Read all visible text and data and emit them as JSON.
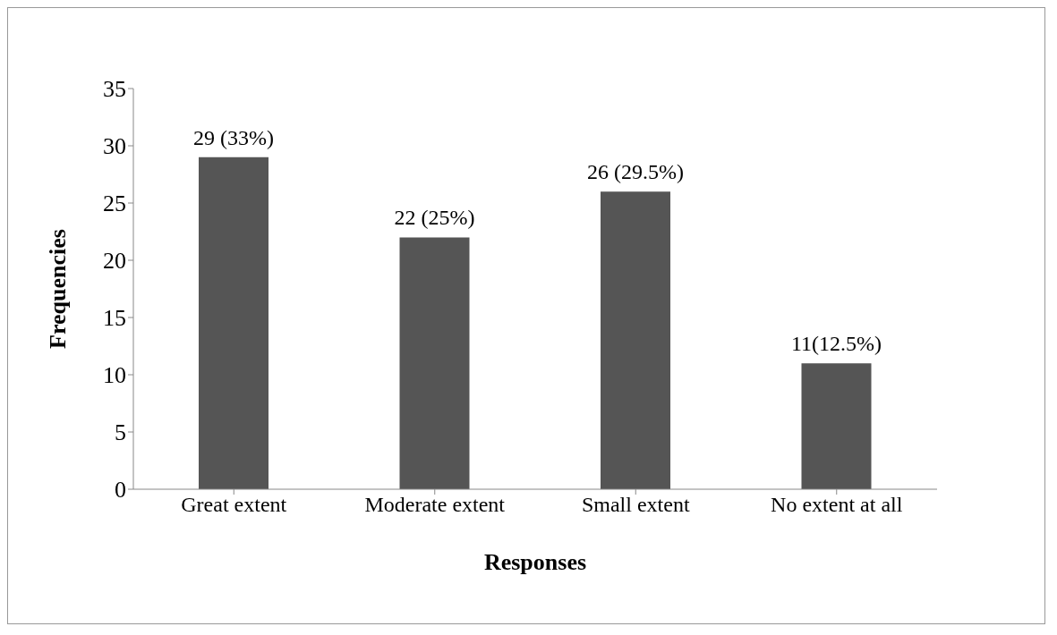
{
  "chart_data": {
    "type": "bar",
    "xlabel": "Responses",
    "ylabel": "Frequencies",
    "categories": [
      "Great extent",
      "Moderate extent",
      "Small extent",
      "No extent at all"
    ],
    "values": [
      29,
      22,
      26,
      11
    ],
    "value_labels": [
      "29 (33%)",
      "22 (25%)",
      "26 (29.5%)",
      "11(12.5%)"
    ],
    "color": "#555555",
    "ylim": [
      0,
      35
    ],
    "yticks": [
      0,
      5,
      10,
      15,
      20,
      25,
      30,
      35
    ],
    "grid": false,
    "legend": false
  }
}
